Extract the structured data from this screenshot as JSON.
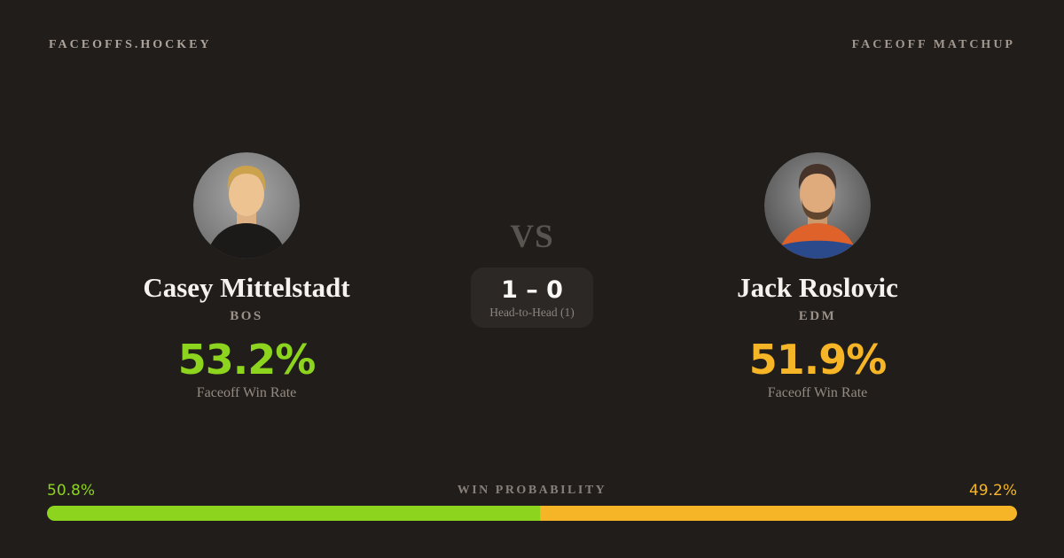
{
  "page": {
    "background": "#211d1a"
  },
  "header": {
    "site_label": "FACEOFFS.HOCKEY",
    "page_label": "FACEOFF MATCHUP"
  },
  "players": {
    "left": {
      "name": "Casey Mittelstadt",
      "team": "BOS",
      "win_rate": "53.2%",
      "win_rate_label": "Faceoff Win Rate",
      "accent": "#8dd41f",
      "avatar": "casey-mittelstadt-headshot"
    },
    "right": {
      "name": "Jack Roslovic",
      "team": "EDM",
      "win_rate": "51.9%",
      "win_rate_label": "Faceoff Win Rate",
      "accent": "#f5b527",
      "avatar": "jack-roslovic-headshot"
    }
  },
  "center": {
    "vs_label": "VS",
    "head_to_head_score": "1 – 0",
    "head_to_head_label": "Head-to-Head (1)"
  },
  "win_probability": {
    "label": "WIN PROBABILITY",
    "left_value": "50.8%",
    "right_value": "49.2%",
    "left_pct": 50.8,
    "right_pct": 49.2,
    "left_color": "#8dd41f",
    "right_color": "#f5b527"
  }
}
